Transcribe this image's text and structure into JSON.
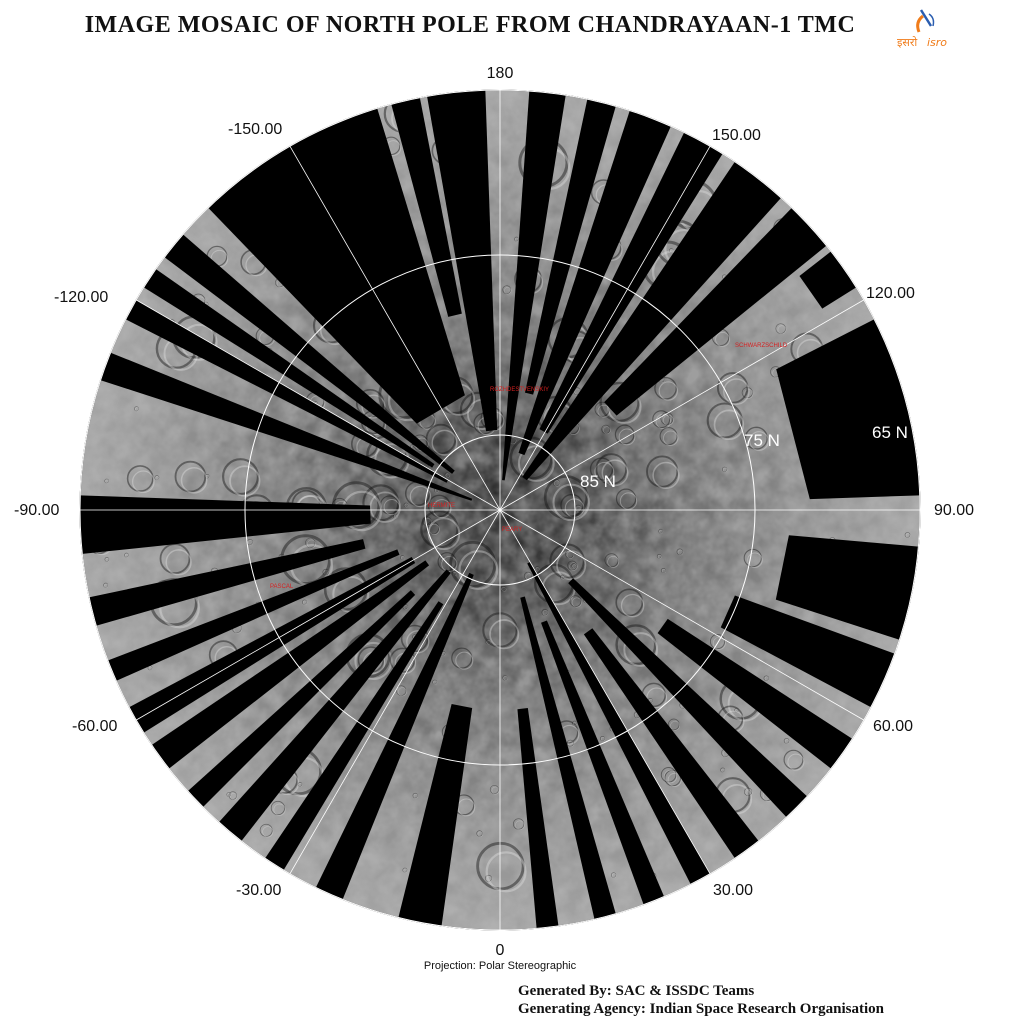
{
  "title": "IMAGE MOSAIC OF NORTH POLE FROM CHANDRAYAAN-1 TMC",
  "logo": {
    "devanagari": "इसरो",
    "latin": "isro",
    "color": "#f07c1a",
    "satellite_color": "#2a5db0"
  },
  "longitude_labels": [
    {
      "id": "lon-180",
      "text": "180"
    },
    {
      "id": "lon-150",
      "text": "150.00"
    },
    {
      "id": "lon-120",
      "text": "120.00"
    },
    {
      "id": "lon-90",
      "text": "90.00"
    },
    {
      "id": "lon-60",
      "text": "60.00"
    },
    {
      "id": "lon-30",
      "text": "30.00"
    },
    {
      "id": "lon-0",
      "text": "0"
    },
    {
      "id": "lon-m30",
      "text": "-30.00"
    },
    {
      "id": "lon-m60",
      "text": "-60.00"
    },
    {
      "id": "lon-m90",
      "text": "-90.00"
    },
    {
      "id": "lon-m120",
      "text": "-120.00"
    },
    {
      "id": "lon-m150",
      "text": "-150.00"
    }
  ],
  "latitude_labels": [
    {
      "id": "lat-85",
      "text": "85 N"
    },
    {
      "id": "lat-75",
      "text": "75 N"
    },
    {
      "id": "lat-65",
      "text": "65 N"
    }
  ],
  "crater_labels": [
    {
      "id": "crater-schwarzschild",
      "text": "SCHWARZSCHILD"
    },
    {
      "id": "crater-rozhdestvenskiy",
      "text": "ROZHDESTVENSKIY"
    },
    {
      "id": "crater-hermite",
      "text": "HERMITE"
    },
    {
      "id": "crater-peary",
      "text": "PEARY"
    },
    {
      "id": "crater-pascal",
      "text": "PASCAL"
    }
  ],
  "projection": "Projection: Polar Stereographic",
  "credits": {
    "generated_by": "Generated By: SAC & ISSDC Teams",
    "agency": "Generating Agency: Indian Space Research Organisation"
  },
  "colors": {
    "background": "#ffffff",
    "void": "#000000",
    "grid": "#ffffff",
    "label_red": "#d42020"
  }
}
